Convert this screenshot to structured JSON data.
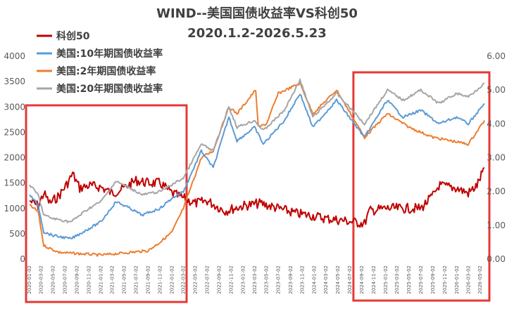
{
  "chart_data": {
    "type": "line",
    "title": "WIND--美国国债收益率VS科创50",
    "subtitle": "2020.1.2-2026.5.23",
    "left_axis": {
      "ticks": [
        0,
        500,
        1000,
        1500,
        2000,
        2500,
        3000,
        3500,
        4000
      ],
      "range": [
        0,
        4000
      ]
    },
    "right_axis": {
      "ticks": [
        "0.00",
        "1.00",
        "2.00",
        "3.00",
        "4.00",
        "5.00",
        "6.00"
      ],
      "range": [
        0,
        6
      ]
    },
    "x_tick_labels": [
      "2020-01-02",
      "2020-03-02",
      "2020-05-02",
      "2020-07-02",
      "2020-09-02",
      "2020-11-02",
      "2021-01-02",
      "2021-03-02",
      "2021-05-02",
      "2021-07-02",
      "2021-09-02",
      "2021-11-02",
      "2022-01-02",
      "2022-03-02",
      "2022-05-02",
      "2022-07-02",
      "2022-09-02",
      "2022-11-02",
      "2023-01-02",
      "2023-03-02",
      "2023-05-02",
      "2023-07-02",
      "2023-09-02",
      "2023-11-02",
      "2024-01-02",
      "2024-03-02",
      "2024-05-02",
      "2024-07-02",
      "2024-09-02",
      "2024-11-02",
      "2025-01-02",
      "2025-03-02",
      "2025-05-02",
      "2025-07-02",
      "2025-09-02",
      "2025-11-02",
      "2026-01-02",
      "2026-03-02",
      "2026-05-02"
    ],
    "x_range": [
      "2020-01-02",
      "2026-05-23"
    ],
    "grid": false,
    "legend_position": "top-left",
    "series": [
      {
        "name": "科创50",
        "axis": "left",
        "color": "#C00000",
        "points": [
          [
            "2020-01-02",
            1150
          ],
          [
            "2020-02-15",
            1050
          ],
          [
            "2020-03-15",
            1300
          ],
          [
            "2020-04-15",
            1100
          ],
          [
            "2020-06-01",
            1250
          ],
          [
            "2020-07-15",
            1500
          ],
          [
            "2020-08-10",
            1680
          ],
          [
            "2020-09-15",
            1400
          ],
          [
            "2020-11-01",
            1450
          ],
          [
            "2021-01-01",
            1420
          ],
          [
            "2021-03-01",
            1300
          ],
          [
            "2021-05-01",
            1400
          ],
          [
            "2021-07-01",
            1550
          ],
          [
            "2021-09-01",
            1500
          ],
          [
            "2021-11-01",
            1500
          ],
          [
            "2022-01-01",
            1300
          ],
          [
            "2022-03-01",
            1200
          ],
          [
            "2022-05-01",
            1100
          ],
          [
            "2022-07-01",
            1150
          ],
          [
            "2022-10-01",
            950
          ],
          [
            "2023-01-01",
            1050
          ],
          [
            "2023-04-01",
            1100
          ],
          [
            "2023-07-01",
            1000
          ],
          [
            "2023-10-01",
            900
          ],
          [
            "2024-01-01",
            850
          ],
          [
            "2024-03-01",
            800
          ],
          [
            "2024-06-01",
            760
          ],
          [
            "2024-09-15",
            700
          ],
          [
            "2024-10-10",
            950
          ],
          [
            "2025-01-01",
            1000
          ],
          [
            "2025-04-01",
            1000
          ],
          [
            "2025-07-01",
            1000
          ],
          [
            "2025-09-01",
            1250
          ],
          [
            "2025-10-01",
            1450
          ],
          [
            "2026-01-01",
            1400
          ],
          [
            "2026-03-01",
            1300
          ],
          [
            "2026-04-15",
            1450
          ],
          [
            "2026-05-23",
            1800
          ]
        ]
      },
      {
        "name": "美国:10年期国债收益率",
        "axis": "right",
        "color": "#5B9BD5",
        "points": [
          [
            "2020-01-02",
            1.9
          ],
          [
            "2020-02-15",
            1.6
          ],
          [
            "2020-03-15",
            0.8
          ],
          [
            "2020-05-01",
            0.7
          ],
          [
            "2020-08-01",
            0.6
          ],
          [
            "2020-11-01",
            0.9
          ],
          [
            "2021-01-01",
            1.1
          ],
          [
            "2021-03-20",
            1.7
          ],
          [
            "2021-06-01",
            1.5
          ],
          [
            "2021-08-01",
            1.3
          ],
          [
            "2021-11-01",
            1.5
          ],
          [
            "2022-01-01",
            1.8
          ],
          [
            "2022-03-01",
            2.0
          ],
          [
            "2022-06-01",
            3.2
          ],
          [
            "2022-08-01",
            2.7
          ],
          [
            "2022-10-20",
            4.2
          ],
          [
            "2022-12-01",
            3.5
          ],
          [
            "2023-03-01",
            3.9
          ],
          [
            "2023-04-15",
            3.4
          ],
          [
            "2023-08-01",
            4.1
          ],
          [
            "2023-10-20",
            4.9
          ],
          [
            "2023-12-25",
            3.9
          ],
          [
            "2024-04-25",
            4.7
          ],
          [
            "2024-09-15",
            3.6
          ],
          [
            "2025-01-10",
            4.7
          ],
          [
            "2025-04-01",
            4.2
          ],
          [
            "2025-07-01",
            4.4
          ],
          [
            "2025-10-01",
            4.0
          ],
          [
            "2026-01-01",
            4.2
          ],
          [
            "2026-03-01",
            4.0
          ],
          [
            "2026-05-23",
            4.6
          ]
        ]
      },
      {
        "name": "美国:2年期国债收益率",
        "axis": "right",
        "color": "#ED7D31",
        "points": [
          [
            "2020-01-02",
            1.6
          ],
          [
            "2020-02-15",
            1.4
          ],
          [
            "2020-03-15",
            0.4
          ],
          [
            "2020-06-01",
            0.2
          ],
          [
            "2021-01-01",
            0.12
          ],
          [
            "2021-06-01",
            0.2
          ],
          [
            "2021-09-01",
            0.25
          ],
          [
            "2021-11-01",
            0.5
          ],
          [
            "2022-01-01",
            0.8
          ],
          [
            "2022-03-01",
            1.5
          ],
          [
            "2022-06-01",
            3.0
          ],
          [
            "2022-08-01",
            3.2
          ],
          [
            "2022-10-20",
            4.5
          ],
          [
            "2022-12-01",
            4.3
          ],
          [
            "2023-03-07",
            5.0
          ],
          [
            "2023-03-20",
            3.9
          ],
          [
            "2023-05-01",
            4.0
          ],
          [
            "2023-07-01",
            4.9
          ],
          [
            "2023-10-20",
            5.2
          ],
          [
            "2023-12-25",
            4.3
          ],
          [
            "2024-04-25",
            5.0
          ],
          [
            "2024-09-15",
            3.6
          ],
          [
            "2025-01-10",
            4.3
          ],
          [
            "2025-05-01",
            3.9
          ],
          [
            "2025-09-01",
            3.6
          ],
          [
            "2025-12-01",
            3.5
          ],
          [
            "2026-03-01",
            3.4
          ],
          [
            "2026-05-23",
            4.1
          ]
        ]
      },
      {
        "name": "美国:20年期国债收益率",
        "axis": "right",
        "color": "#A5A5A5",
        "points": [
          [
            "2020-01-02",
            2.2
          ],
          [
            "2020-02-15",
            1.9
          ],
          [
            "2020-03-15",
            1.3
          ],
          [
            "2020-05-01",
            1.2
          ],
          [
            "2020-08-01",
            1.1
          ],
          [
            "2020-11-01",
            1.5
          ],
          [
            "2021-01-01",
            1.7
          ],
          [
            "2021-03-20",
            2.3
          ],
          [
            "2021-06-01",
            2.1
          ],
          [
            "2021-08-01",
            1.9
          ],
          [
            "2021-11-01",
            2.0
          ],
          [
            "2022-01-01",
            2.2
          ],
          [
            "2022-03-01",
            2.4
          ],
          [
            "2022-06-01",
            3.4
          ],
          [
            "2022-08-01",
            3.2
          ],
          [
            "2022-10-20",
            4.5
          ],
          [
            "2022-12-01",
            3.9
          ],
          [
            "2023-03-01",
            4.1
          ],
          [
            "2023-04-15",
            3.8
          ],
          [
            "2023-08-01",
            4.4
          ],
          [
            "2023-10-20",
            5.3
          ],
          [
            "2023-12-25",
            4.2
          ],
          [
            "2024-04-25",
            4.9
          ],
          [
            "2024-09-15",
            4.0
          ],
          [
            "2025-01-10",
            5.0
          ],
          [
            "2025-04-01",
            4.7
          ],
          [
            "2025-07-01",
            5.0
          ],
          [
            "2025-10-01",
            4.6
          ],
          [
            "2026-01-01",
            4.9
          ],
          [
            "2026-03-01",
            4.8
          ],
          [
            "2026-05-23",
            5.2
          ]
        ]
      }
    ],
    "highlight_boxes": [
      {
        "from": "2020-01-02",
        "to": "2022-01-15",
        "color": "#E53935"
      },
      {
        "from": "2024-07-20",
        "to": "2026-05-23",
        "color": "#E53935"
      }
    ]
  }
}
